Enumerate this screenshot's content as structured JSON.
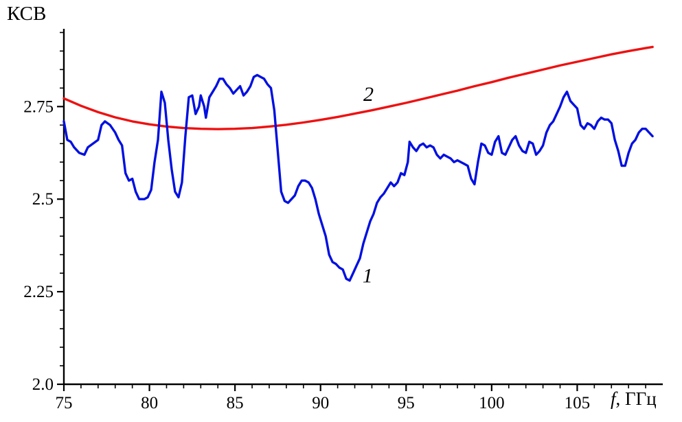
{
  "figure": {
    "background": "#ffffff",
    "axis_color": "#000000"
  },
  "chart_data": {
    "type": "line",
    "title": "",
    "ylabel": "КСВ",
    "xlabel": "f, ГГц",
    "xlabel_italic": "f",
    "xlabel_rest": ", ГГц",
    "xlim": [
      75,
      110
    ],
    "ylim": [
      2.0,
      2.96
    ],
    "x_ticks": [
      75,
      80,
      85,
      90,
      95,
      100,
      105
    ],
    "x_minor_step": 1,
    "y_ticks": [
      2.0,
      2.25,
      2.5,
      2.75
    ],
    "y_tick_labels": [
      "2.0",
      "2.25",
      "2.5",
      "2.75"
    ],
    "y_minor_step": 0.05,
    "grid": false,
    "legend_position": "none",
    "series": [
      {
        "name": "1",
        "color": "#0010e0",
        "width": 3.4,
        "label_pos": [
          92.75,
          2.275
        ],
        "points": [
          [
            75,
            2.71
          ],
          [
            75.2,
            2.66
          ],
          [
            75.4,
            2.655
          ],
          [
            75.6,
            2.64
          ],
          [
            75.9,
            2.625
          ],
          [
            76.2,
            2.62
          ],
          [
            76.4,
            2.64
          ],
          [
            76.7,
            2.65
          ],
          [
            77,
            2.66
          ],
          [
            77.2,
            2.7
          ],
          [
            77.4,
            2.71
          ],
          [
            77.7,
            2.7
          ],
          [
            78,
            2.68
          ],
          [
            78.2,
            2.66
          ],
          [
            78.4,
            2.645
          ],
          [
            78.6,
            2.57
          ],
          [
            78.8,
            2.55
          ],
          [
            79,
            2.555
          ],
          [
            79.2,
            2.52
          ],
          [
            79.4,
            2.5
          ],
          [
            79.7,
            2.5
          ],
          [
            79.9,
            2.505
          ],
          [
            80.1,
            2.525
          ],
          [
            80.3,
            2.6
          ],
          [
            80.5,
            2.66
          ],
          [
            80.7,
            2.79
          ],
          [
            80.9,
            2.76
          ],
          [
            81.1,
            2.66
          ],
          [
            81.3,
            2.58
          ],
          [
            81.5,
            2.52
          ],
          [
            81.7,
            2.505
          ],
          [
            81.9,
            2.545
          ],
          [
            82.1,
            2.67
          ],
          [
            82.3,
            2.775
          ],
          [
            82.5,
            2.78
          ],
          [
            82.7,
            2.73
          ],
          [
            82.9,
            2.75
          ],
          [
            83,
            2.78
          ],
          [
            83.2,
            2.75
          ],
          [
            83.3,
            2.72
          ],
          [
            83.5,
            2.775
          ],
          [
            83.7,
            2.79
          ],
          [
            83.9,
            2.805
          ],
          [
            84.1,
            2.825
          ],
          [
            84.3,
            2.825
          ],
          [
            84.5,
            2.81
          ],
          [
            84.7,
            2.8
          ],
          [
            84.9,
            2.785
          ],
          [
            85.1,
            2.795
          ],
          [
            85.3,
            2.805
          ],
          [
            85.5,
            2.78
          ],
          [
            85.7,
            2.79
          ],
          [
            85.9,
            2.805
          ],
          [
            86.1,
            2.83
          ],
          [
            86.3,
            2.835
          ],
          [
            86.5,
            2.83
          ],
          [
            86.7,
            2.825
          ],
          [
            86.9,
            2.81
          ],
          [
            87.1,
            2.8
          ],
          [
            87.3,
            2.74
          ],
          [
            87.5,
            2.63
          ],
          [
            87.7,
            2.52
          ],
          [
            87.9,
            2.495
          ],
          [
            88.1,
            2.49
          ],
          [
            88.3,
            2.5
          ],
          [
            88.5,
            2.51
          ],
          [
            88.7,
            2.535
          ],
          [
            88.9,
            2.55
          ],
          [
            89.1,
            2.55
          ],
          [
            89.3,
            2.545
          ],
          [
            89.5,
            2.53
          ],
          [
            89.7,
            2.5
          ],
          [
            89.9,
            2.46
          ],
          [
            90.1,
            2.43
          ],
          [
            90.3,
            2.4
          ],
          [
            90.5,
            2.35
          ],
          [
            90.7,
            2.33
          ],
          [
            90.9,
            2.325
          ],
          [
            91.1,
            2.315
          ],
          [
            91.3,
            2.31
          ],
          [
            91.5,
            2.285
          ],
          [
            91.7,
            2.28
          ],
          [
            91.9,
            2.3
          ],
          [
            92.1,
            2.32
          ],
          [
            92.3,
            2.34
          ],
          [
            92.5,
            2.38
          ],
          [
            92.7,
            2.41
          ],
          [
            92.9,
            2.44
          ],
          [
            93.1,
            2.46
          ],
          [
            93.3,
            2.49
          ],
          [
            93.5,
            2.505
          ],
          [
            93.7,
            2.515
          ],
          [
            93.9,
            2.53
          ],
          [
            94.1,
            2.545
          ],
          [
            94.3,
            2.535
          ],
          [
            94.5,
            2.545
          ],
          [
            94.7,
            2.57
          ],
          [
            94.9,
            2.565
          ],
          [
            95.1,
            2.6
          ],
          [
            95.2,
            2.655
          ],
          [
            95.4,
            2.64
          ],
          [
            95.6,
            2.63
          ],
          [
            95.8,
            2.645
          ],
          [
            96,
            2.65
          ],
          [
            96.2,
            2.64
          ],
          [
            96.4,
            2.645
          ],
          [
            96.6,
            2.64
          ],
          [
            96.8,
            2.62
          ],
          [
            97,
            2.61
          ],
          [
            97.2,
            2.62
          ],
          [
            97.4,
            2.615
          ],
          [
            97.6,
            2.61
          ],
          [
            97.8,
            2.6
          ],
          [
            98,
            2.605
          ],
          [
            98.2,
            2.6
          ],
          [
            98.4,
            2.595
          ],
          [
            98.6,
            2.59
          ],
          [
            98.8,
            2.555
          ],
          [
            99,
            2.54
          ],
          [
            99.2,
            2.6
          ],
          [
            99.4,
            2.65
          ],
          [
            99.6,
            2.645
          ],
          [
            99.8,
            2.625
          ],
          [
            100,
            2.62
          ],
          [
            100.2,
            2.655
          ],
          [
            100.4,
            2.67
          ],
          [
            100.6,
            2.625
          ],
          [
            100.8,
            2.62
          ],
          [
            101,
            2.64
          ],
          [
            101.2,
            2.66
          ],
          [
            101.4,
            2.67
          ],
          [
            101.6,
            2.645
          ],
          [
            101.8,
            2.63
          ],
          [
            102,
            2.625
          ],
          [
            102.2,
            2.655
          ],
          [
            102.4,
            2.65
          ],
          [
            102.6,
            2.62
          ],
          [
            102.8,
            2.63
          ],
          [
            103,
            2.645
          ],
          [
            103.2,
            2.68
          ],
          [
            103.4,
            2.7
          ],
          [
            103.6,
            2.71
          ],
          [
            103.8,
            2.73
          ],
          [
            104,
            2.75
          ],
          [
            104.2,
            2.775
          ],
          [
            104.4,
            2.79
          ],
          [
            104.6,
            2.765
          ],
          [
            104.8,
            2.755
          ],
          [
            105,
            2.745
          ],
          [
            105.2,
            2.7
          ],
          [
            105.4,
            2.69
          ],
          [
            105.6,
            2.705
          ],
          [
            105.8,
            2.7
          ],
          [
            106,
            2.69
          ],
          [
            106.2,
            2.71
          ],
          [
            106.4,
            2.72
          ],
          [
            106.6,
            2.715
          ],
          [
            106.8,
            2.715
          ],
          [
            107,
            2.705
          ],
          [
            107.2,
            2.66
          ],
          [
            107.4,
            2.63
          ],
          [
            107.6,
            2.59
          ],
          [
            107.8,
            2.59
          ],
          [
            108,
            2.625
          ],
          [
            108.2,
            2.65
          ],
          [
            108.4,
            2.66
          ],
          [
            108.6,
            2.68
          ],
          [
            108.8,
            2.69
          ],
          [
            109,
            2.69
          ],
          [
            109.2,
            2.68
          ],
          [
            109.4,
            2.67
          ]
        ]
      },
      {
        "name": "2",
        "color": "#ee1111",
        "width": 3.4,
        "label_pos": [
          92.8,
          2.765
        ],
        "points": [
          [
            75,
            2.772
          ],
          [
            76,
            2.752
          ],
          [
            77,
            2.735
          ],
          [
            78,
            2.721
          ],
          [
            79,
            2.71
          ],
          [
            80,
            2.702
          ],
          [
            81,
            2.696
          ],
          [
            82,
            2.692
          ],
          [
            83,
            2.69
          ],
          [
            84,
            2.689
          ],
          [
            85,
            2.69
          ],
          [
            86,
            2.692
          ],
          [
            87,
            2.696
          ],
          [
            88,
            2.701
          ],
          [
            89,
            2.707
          ],
          [
            90,
            2.714
          ],
          [
            91,
            2.722
          ],
          [
            92,
            2.731
          ],
          [
            93,
            2.74
          ],
          [
            94,
            2.75
          ],
          [
            95,
            2.76
          ],
          [
            96,
            2.771
          ],
          [
            97,
            2.782
          ],
          [
            98,
            2.793
          ],
          [
            99,
            2.805
          ],
          [
            100,
            2.816
          ],
          [
            101,
            2.828
          ],
          [
            102,
            2.839
          ],
          [
            103,
            2.85
          ],
          [
            104,
            2.861
          ],
          [
            105,
            2.871
          ],
          [
            106,
            2.881
          ],
          [
            107,
            2.891
          ],
          [
            108,
            2.9
          ],
          [
            109,
            2.908
          ],
          [
            109.4,
            2.911
          ]
        ]
      }
    ]
  }
}
